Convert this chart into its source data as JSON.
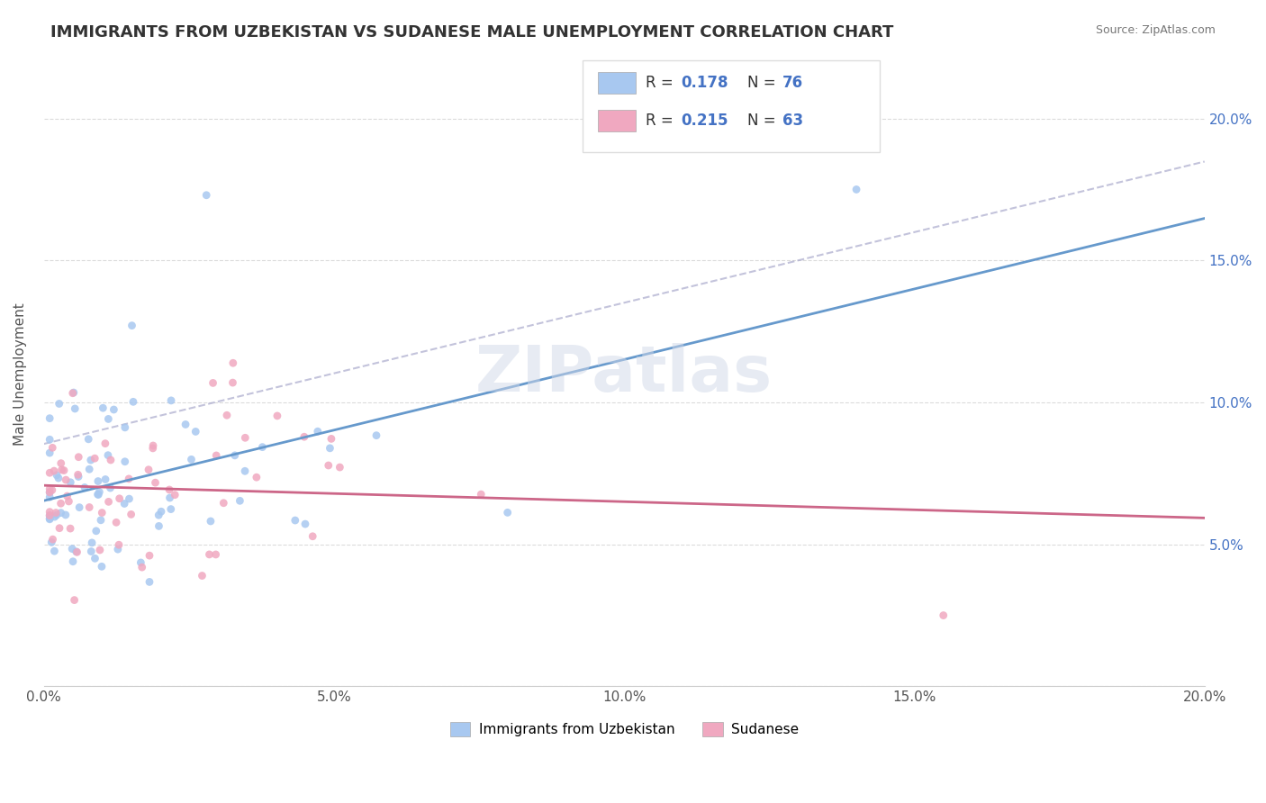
{
  "title": "IMMIGRANTS FROM UZBEKISTAN VS SUDANESE MALE UNEMPLOYMENT CORRELATION CHART",
  "source": "Source: ZipAtlas.com",
  "xlabel": "",
  "ylabel": "Male Unemployment",
  "series1_label": "Immigrants from Uzbekistan",
  "series2_label": "Sudanese",
  "r1": 0.178,
  "n1": 76,
  "r2": 0.215,
  "n2": 63,
  "color1": "#a8c8f0",
  "color2": "#f0a8c0",
  "trendline1_color": "#6699cc",
  "trendline2_color": "#cc6688",
  "dashed_color": "#aaaacc",
  "xmin": 0.0,
  "xmax": 0.2,
  "ymin": 0.0,
  "ymax": 0.22,
  "watermark": "ZIPatlas"
}
